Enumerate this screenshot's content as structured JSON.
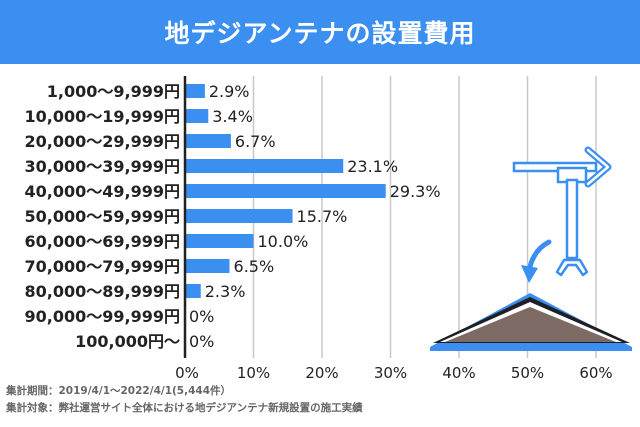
{
  "header": {
    "title": "地デジアンテナの設置費用"
  },
  "colors": {
    "banner": "#3a8ff0",
    "bar": "#3a8ff0",
    "grid": "#c8c8c8",
    "axis": "#222222",
    "text": "#222222"
  },
  "chart_data": {
    "type": "bar",
    "orientation": "horizontal",
    "title": "",
    "xlabel": "",
    "ylabel": "",
    "categories": [
      "1,000〜9,999円",
      "10,000〜19,999円",
      "20,000〜29,999円",
      "30,000〜39,999円",
      "40,000〜49,999円",
      "50,000〜59,999円",
      "60,000〜69,999円",
      "70,000〜79,999円",
      "80,000〜89,999円",
      "90,000〜99,999円",
      "100,000円〜"
    ],
    "values": [
      2.9,
      3.4,
      6.7,
      23.1,
      29.3,
      15.7,
      10.0,
      6.5,
      2.3,
      0,
      0
    ],
    "value_labels": [
      "2.9%",
      "3.4%",
      "6.7%",
      "23.1%",
      "29.3%",
      "15.7%",
      "10.0%",
      "6.5%",
      "2.3%",
      "0%",
      "0%"
    ],
    "xlim": [
      0,
      60
    ],
    "xticks": [
      0,
      10,
      20,
      30,
      40,
      50,
      60
    ],
    "xtick_labels": [
      "0%",
      "10%",
      "20%",
      "30%",
      "40%",
      "50%",
      "60%"
    ],
    "grid": true
  },
  "footnotes": {
    "period": "集計期間：2019/4/1〜2022/4/1(5,444件）",
    "target": "集計対象：弊社運営サイト全体における地デジアンテナ新規設置の施工実績"
  },
  "illustration": {
    "icons": [
      "antenna-icon",
      "curved-arrow-icon",
      "roof-icon"
    ]
  }
}
